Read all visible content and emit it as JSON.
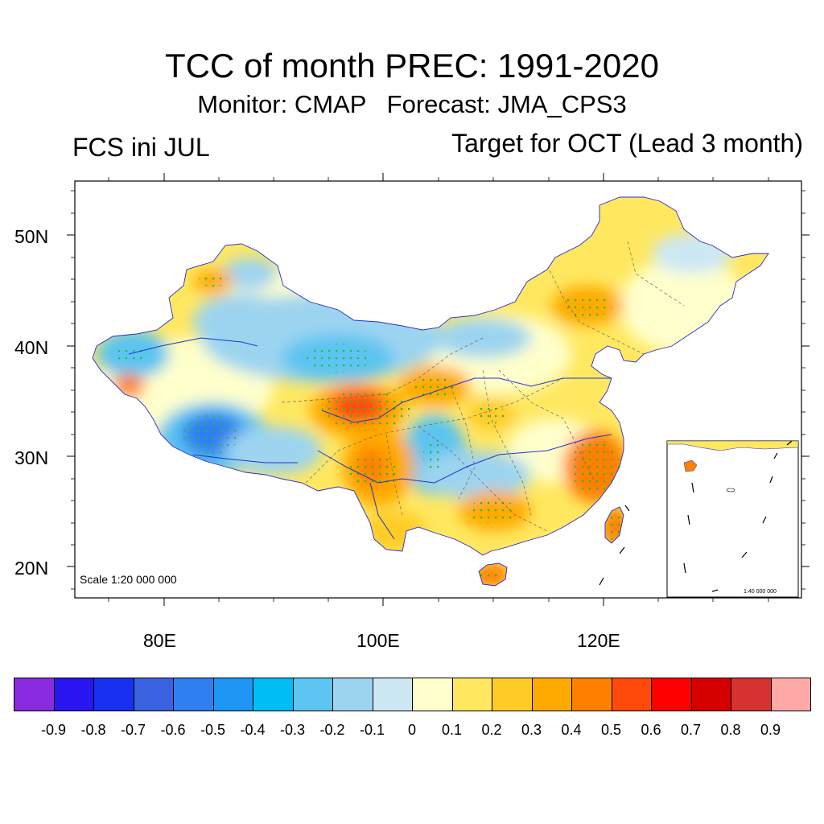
{
  "title": "TCC of month PREC: 1991-2020",
  "subtitle": "Monitor: CMAP   Forecast: JMA_CPS3",
  "left_label": "FCS ini JUL",
  "right_label": "Target for OCT (Lead 3 month)",
  "scale_main": "Scale 1:20 000 000",
  "scale_inset": "1:40 000 000",
  "lat_labels": [
    "50N",
    "40N",
    "30N",
    "20N"
  ],
  "lon_labels": [
    "80E",
    "100E",
    "120E"
  ],
  "colorbar": {
    "colors": [
      "#8a2be2",
      "#2a16f0",
      "#1a30f0",
      "#3a62e0",
      "#2f7ff0",
      "#1e96f5",
      "#00bdf5",
      "#5cc4f0",
      "#9cd4f0",
      "#cce8f5",
      "#ffffcc",
      "#ffe860",
      "#ffcc26",
      "#ffaa00",
      "#ff7f00",
      "#ff4a0a",
      "#ff0000",
      "#d60000",
      "#d63232",
      "#ffa8a8"
    ],
    "tick_labels": [
      "-0.9",
      "-0.8",
      "-0.7",
      "-0.6",
      "-0.5",
      "-0.4",
      "-0.3",
      "-0.2",
      "-0.1",
      "0",
      "0.1",
      "0.2",
      "0.3",
      "0.4",
      "0.5",
      "0.6",
      "0.7",
      "0.8",
      "0.9"
    ]
  },
  "stipple_color": "#22bb33"
}
